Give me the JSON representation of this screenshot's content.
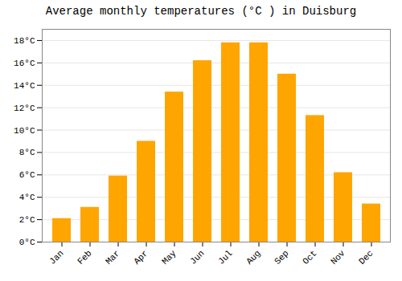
{
  "chart_data": {
    "type": "bar",
    "title": "Average monthly temperatures (°C ) in Duisburg",
    "categories": [
      "Jan",
      "Feb",
      "Mar",
      "Apr",
      "May",
      "Jun",
      "Jul",
      "Aug",
      "Sep",
      "Oct",
      "Nov",
      "Dec"
    ],
    "values": [
      2.1,
      3.1,
      5.9,
      9.0,
      13.4,
      16.2,
      17.8,
      17.8,
      15.0,
      11.3,
      6.2,
      3.4
    ],
    "color": "#FFA500",
    "ylim": [
      0,
      19
    ],
    "yticks": [
      {
        "value": 0,
        "label": "0°C"
      },
      {
        "value": 2,
        "label": "2°C"
      },
      {
        "value": 4,
        "label": "4°C"
      },
      {
        "value": 6,
        "label": "6°C"
      },
      {
        "value": 8,
        "label": "8°C"
      },
      {
        "value": 10,
        "label": "10°C"
      },
      {
        "value": 12,
        "label": "12°C"
      },
      {
        "value": 14,
        "label": "14°C"
      },
      {
        "value": 16,
        "label": "16°C"
      },
      {
        "value": 18,
        "label": "18°C"
      }
    ],
    "grid": true
  }
}
